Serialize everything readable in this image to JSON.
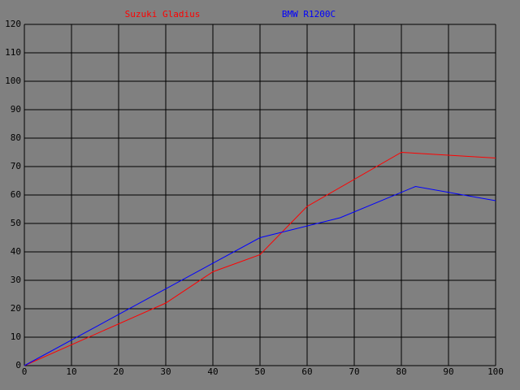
{
  "chart_data": {
    "type": "line",
    "xlim": [
      0,
      100
    ],
    "xticks": [
      0,
      10,
      20,
      30,
      40,
      50,
      60,
      70,
      80,
      90,
      100
    ],
    "ylim": [
      0,
      120
    ],
    "yticks": [
      0,
      10,
      20,
      30,
      40,
      50,
      60,
      70,
      80,
      90,
      100,
      110,
      120
    ],
    "grid": true,
    "series": [
      {
        "name": "Suzuki Gladius",
        "color": "#ff0000",
        "x": [
          0,
          30,
          40,
          50,
          60,
          80,
          100
        ],
        "values": [
          0,
          22,
          33,
          39,
          56,
          75,
          73
        ]
      },
      {
        "name": "BMW R1200C",
        "color": "#0000ff",
        "x": [
          0,
          50,
          67,
          83,
          100
        ],
        "values": [
          0,
          45,
          52,
          63,
          58
        ]
      }
    ]
  }
}
